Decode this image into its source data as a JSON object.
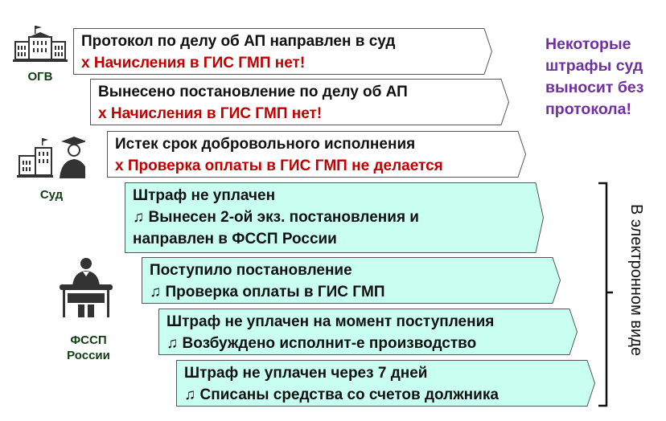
{
  "actors": {
    "ogv": {
      "label": "ОГВ",
      "icon": "government-building-icon"
    },
    "court": {
      "label": "Суд",
      "icon": "court-judge-icon"
    },
    "fssp": {
      "label_line1": "ФССП",
      "label_line2": "России",
      "icon": "bailiff-desk-icon"
    }
  },
  "steps": [
    {
      "lines": [
        {
          "text": "Протокол по делу об АП направлен в суд",
          "style": "normal"
        },
        {
          "text": "х Начисления в ГИС ГМП нет!",
          "style": "red"
        }
      ],
      "fill": "#FFFFFF"
    },
    {
      "lines": [
        {
          "text": "Вынесено постановление по делу об АП",
          "style": "normal"
        },
        {
          "text": "х Начисления в ГИС ГМП нет!",
          "style": "red"
        }
      ],
      "fill": "#FFFFFF"
    },
    {
      "lines": [
        {
          "text": "Истек срок добровольного исполнения",
          "style": "normal"
        },
        {
          "text": "х Проверка оплаты в ГИС ГМП не делается",
          "style": "red"
        }
      ],
      "fill": "#FFFFFF"
    },
    {
      "lines": [
        {
          "text": "Штраф не уплачен",
          "style": "normal"
        },
        {
          "text": "♫ Вынесен 2-ой экз. постановления и",
          "style": "normal"
        },
        {
          "text": "направлен в ФССП России",
          "style": "normal"
        }
      ],
      "fill": "#C9FFF1"
    },
    {
      "lines": [
        {
          "text": "Поступило постановление",
          "style": "normal"
        },
        {
          "text": "♫ Проверка оплаты в ГИС ГМП",
          "style": "normal"
        }
      ],
      "fill": "#C9FFF1"
    },
    {
      "lines": [
        {
          "text": "Штраф не уплачен на момент поступления",
          "style": "normal"
        },
        {
          "text": "♫ Возбуждено исполнит-е производство",
          "style": "normal"
        }
      ],
      "fill": "#C9FFF1"
    },
    {
      "lines": [
        {
          "text": "Штраф не уплачен через 7 дней",
          "style": "normal"
        },
        {
          "text": "♫ Списаны средства со счетов должника",
          "style": "normal"
        }
      ],
      "fill": "#C9FFF1"
    }
  ],
  "note": {
    "lines": [
      "Некоторые",
      "штрафы суд",
      "выносит без",
      "протокола!"
    ],
    "color": "#7030A0"
  },
  "bracket_label": "В электронном виде",
  "colors": {
    "red": "#C00000",
    "border": "#555555",
    "label_green": "#0F3D12"
  }
}
